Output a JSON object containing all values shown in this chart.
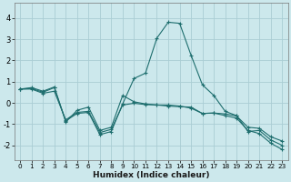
{
  "xlabel": "Humidex (Indice chaleur)",
  "background_color": "#cce8ec",
  "grid_color": "#aacdd4",
  "line_color": "#1e6e6e",
  "xlim": [
    -0.5,
    23.5
  ],
  "ylim": [
    -2.7,
    4.7
  ],
  "xticks": [
    0,
    1,
    2,
    3,
    4,
    5,
    6,
    7,
    8,
    9,
    10,
    11,
    12,
    13,
    14,
    15,
    16,
    17,
    18,
    19,
    20,
    21,
    22,
    23
  ],
  "yticks": [
    -2,
    -1,
    0,
    1,
    2,
    3,
    4
  ],
  "series": [
    {
      "x": [
        0,
        1,
        2,
        3,
        4,
        5,
        6,
        7,
        8,
        9,
        10,
        11,
        12,
        13,
        14,
        15,
        16,
        17,
        18,
        19,
        20,
        21,
        22,
        23
      ],
      "y": [
        0.65,
        0.72,
        0.55,
        0.75,
        -0.9,
        -0.35,
        -0.2,
        -1.3,
        -1.15,
        0.35,
        0.05,
        -0.05,
        -0.1,
        -0.1,
        -0.15,
        -0.25,
        -0.5,
        -0.48,
        -0.52,
        -0.62,
        -1.15,
        -1.2,
        -1.6,
        -1.8
      ],
      "marker": "+"
    },
    {
      "x": [
        0,
        1,
        2,
        3,
        4,
        5,
        6,
        7,
        8,
        9,
        10,
        11,
        12,
        13,
        14,
        15,
        16,
        17,
        18,
        19,
        20,
        21,
        22,
        23
      ],
      "y": [
        0.65,
        0.68,
        0.5,
        0.72,
        -0.85,
        -0.5,
        -0.45,
        -1.5,
        -1.35,
        -0.05,
        1.15,
        1.4,
        3.05,
        3.8,
        3.75,
        2.25,
        0.85,
        0.35,
        -0.4,
        -0.6,
        -1.35,
        -1.3,
        -1.75,
        -2.0
      ],
      "marker": "+"
    },
    {
      "x": [
        0,
        1,
        2,
        3,
        4,
        5,
        6,
        7,
        8,
        9,
        10,
        11,
        12,
        13,
        14,
        15,
        16,
        17,
        18,
        19,
        20,
        21,
        22,
        23
      ],
      "y": [
        0.65,
        0.65,
        0.45,
        0.55,
        -0.8,
        -0.45,
        -0.4,
        -1.4,
        -1.25,
        -0.1,
        -0.02,
        -0.08,
        -0.1,
        -0.15,
        -0.18,
        -0.2,
        -0.5,
        -0.48,
        -0.6,
        -0.72,
        -1.3,
        -1.45,
        -1.9,
        -2.2
      ],
      "marker": "+"
    }
  ]
}
